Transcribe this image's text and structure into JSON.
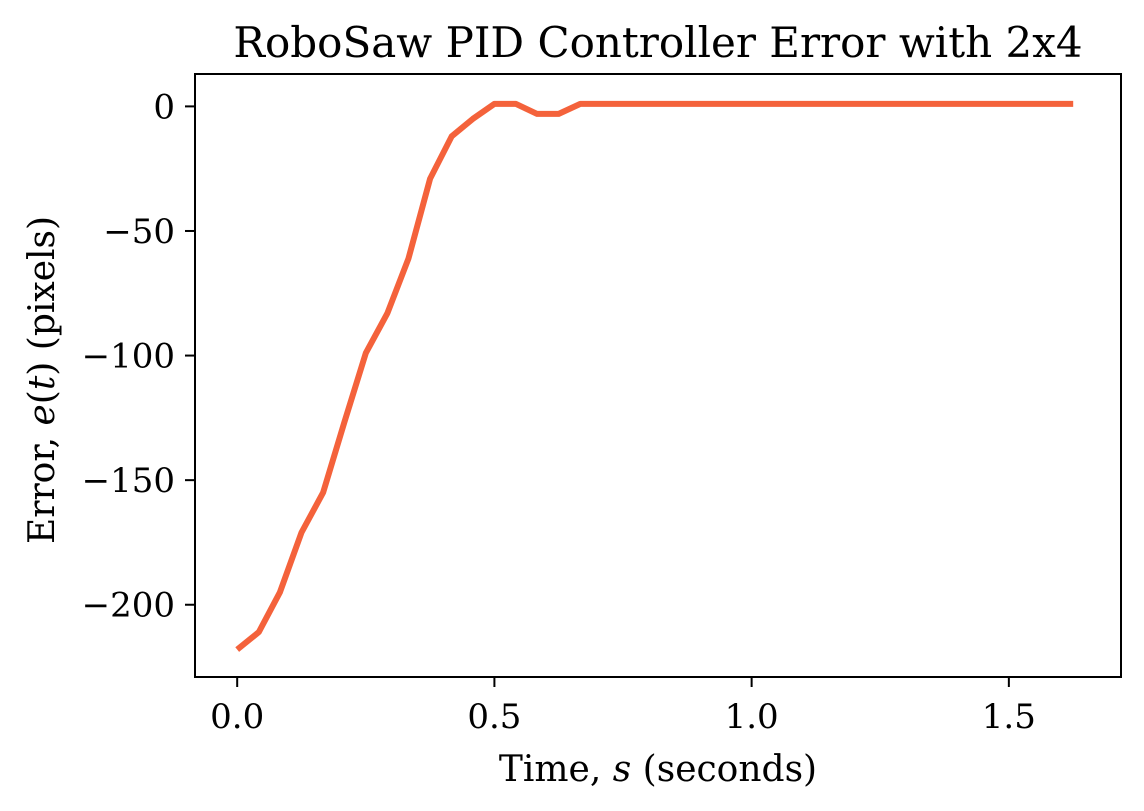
{
  "chart_data": {
    "type": "line",
    "title": "RoboSaw PID Controller Error with 2x4",
    "xlabel_parts": [
      {
        "text": "Time, ",
        "italic": false
      },
      {
        "text": "s",
        "italic": true
      },
      {
        "text": " (seconds)",
        "italic": false
      }
    ],
    "ylabel_parts": [
      {
        "text": "Error, ",
        "italic": false
      },
      {
        "text": "e",
        "italic": true
      },
      {
        "text": "(",
        "italic": false
      },
      {
        "text": "t",
        "italic": true
      },
      {
        "text": ") (pixels)",
        "italic": false
      }
    ],
    "xlim": [
      -0.082,
      1.718
    ],
    "ylim": [
      -229,
      13
    ],
    "x_ticks": [
      0.0,
      0.5,
      1.0,
      1.5
    ],
    "x_tick_labels": [
      "0.0",
      "0.5",
      "1.0",
      "1.5"
    ],
    "y_ticks": [
      0,
      -50,
      -100,
      -150,
      -200
    ],
    "y_tick_labels": [
      "0",
      "−50",
      "−100",
      "−150",
      "−200"
    ],
    "grid": false,
    "series": [
      {
        "color": "#f4623b",
        "x": [
          0.0,
          0.042,
          0.083,
          0.125,
          0.167,
          0.208,
          0.25,
          0.292,
          0.333,
          0.375,
          0.417,
          0.458,
          0.5,
          0.542,
          0.583,
          0.625,
          0.667,
          0.708,
          0.75,
          0.792,
          0.833,
          0.875,
          0.917,
          0.958,
          1.0,
          1.042,
          1.083,
          1.125,
          1.167,
          1.208,
          1.25,
          1.292,
          1.333,
          1.375,
          1.417,
          1.458,
          1.5,
          1.542,
          1.583,
          1.625
        ],
        "y": [
          -218,
          -211,
          -195,
          -171,
          -155,
          -127,
          -99,
          -83,
          -61,
          -29,
          -12,
          -5,
          1,
          1,
          -3,
          -3,
          1,
          1,
          1,
          1,
          1,
          1,
          1,
          1,
          1,
          1,
          1,
          1,
          1,
          1,
          1,
          1,
          1,
          1,
          1,
          1,
          1,
          1,
          1,
          1
        ]
      }
    ]
  }
}
